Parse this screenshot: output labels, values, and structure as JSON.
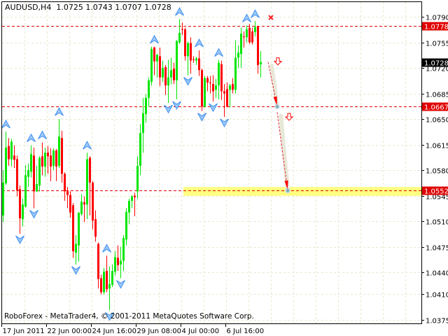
{
  "header": {
    "symbol": "AUDUSD,H4",
    "ohlc": "1.0725 1.0743 1.0707 1.0728"
  },
  "footer": {
    "copyright": "RoboForex - MetaTrader4, © 2001-2011 MetaQuotes Software Corp."
  },
  "colors": {
    "bull": "#00e600",
    "bear": "#ff0000",
    "level": "#e00000",
    "zone": "#ffff80",
    "fractal": "#3f8fef",
    "grid": "#e8e8d0",
    "current_label": "#000000"
  },
  "chart_data": {
    "type": "candlestick",
    "title": "AUDUSD,H4",
    "ylim": [
      1.0375,
      1.079
    ],
    "yticks": [
      "1.0790",
      "1.0755",
      "1.0720",
      "1.0685",
      "1.0650",
      "1.0615",
      "1.0580",
      "1.0545",
      "1.0510",
      "1.0475",
      "1.0440",
      "1.0410",
      "1.0375"
    ],
    "xticks": [
      {
        "label": "17 Jun 2011",
        "candle": 0
      },
      {
        "label": "22 Jun 00:00",
        "candle": 16
      },
      {
        "label": "24 Jun 16:00",
        "candle": 32
      },
      {
        "label": "29 Jun 08:00",
        "candle": 48
      },
      {
        "label": "4 Jul 00:00",
        "candle": 64
      },
      {
        "label": "6 Jul 16:00",
        "candle": 80
      }
    ],
    "grid": true,
    "candles_ohlc": [
      [
        1.0518,
        1.058,
        1.0509,
        1.0563
      ],
      [
        1.0562,
        1.0633,
        1.056,
        1.0611
      ],
      [
        1.0613,
        1.0624,
        1.0586,
        1.0595
      ],
      [
        1.0595,
        1.0623,
        1.0585,
        1.0619
      ],
      [
        1.06,
        1.0614,
        1.0583,
        1.0594
      ],
      [
        1.0595,
        1.06,
        1.0544,
        1.0552
      ],
      [
        1.0554,
        1.0559,
        1.0493,
        1.0514
      ],
      [
        1.0513,
        1.0541,
        1.0503,
        1.0533
      ],
      [
        1.053,
        1.0587,
        1.0529,
        1.0573
      ],
      [
        1.0571,
        1.0589,
        1.0557,
        1.058
      ],
      [
        1.0578,
        1.0614,
        1.057,
        1.0602
      ],
      [
        1.06,
        1.0611,
        1.0528,
        1.0551
      ],
      [
        1.0551,
        1.0586,
        1.055,
        1.0561
      ],
      [
        1.0559,
        1.0599,
        1.0551,
        1.0597
      ],
      [
        1.0599,
        1.0618,
        1.0573,
        1.0585
      ],
      [
        1.0585,
        1.0611,
        1.0571,
        1.0604
      ],
      [
        1.0604,
        1.0613,
        1.0575,
        1.0599
      ],
      [
        1.06,
        1.061,
        1.0565,
        1.0585
      ],
      [
        1.0586,
        1.061,
        1.058,
        1.0607
      ],
      [
        1.0607,
        1.0609,
        1.0565,
        1.0585
      ],
      [
        1.0586,
        1.065,
        1.0583,
        1.0626
      ],
      [
        1.0624,
        1.0634,
        1.0563,
        1.0575
      ],
      [
        1.0575,
        1.0577,
        1.0538,
        1.0551
      ],
      [
        1.0551,
        1.0557,
        1.0528,
        1.0546
      ],
      [
        1.0546,
        1.0551,
        1.0515,
        1.0522
      ],
      [
        1.0532,
        1.0535,
        1.046,
        1.0469
      ],
      [
        1.0467,
        1.0491,
        1.0451,
        1.0479
      ],
      [
        1.0477,
        1.0522,
        1.0455,
        1.0522
      ],
      [
        1.052,
        1.0547,
        1.0518,
        1.0537
      ],
      [
        1.0536,
        1.0544,
        1.0509,
        1.0533
      ],
      [
        1.0533,
        1.0604,
        1.0513,
        1.0595
      ],
      [
        1.0597,
        1.0599,
        1.0518,
        1.0563
      ],
      [
        1.0563,
        1.0565,
        1.0499,
        1.0511
      ],
      [
        1.0513,
        1.0525,
        1.0482,
        1.0489
      ],
      [
        1.0479,
        1.0481,
        1.0418,
        1.0431
      ],
      [
        1.0432,
        1.0437,
        1.041,
        1.0413
      ],
      [
        1.0413,
        1.0446,
        1.041,
        1.0441
      ],
      [
        1.0442,
        1.0463,
        1.0413,
        1.0417
      ],
      [
        1.0418,
        1.0448,
        1.0388,
        1.0424
      ],
      [
        1.0423,
        1.0451,
        1.042,
        1.0442
      ],
      [
        1.0441,
        1.0469,
        1.0436,
        1.0461
      ],
      [
        1.046,
        1.0477,
        1.0442,
        1.045
      ],
      [
        1.0451,
        1.0475,
        1.0432,
        1.0456
      ],
      [
        1.0456,
        1.0491,
        1.0442,
        1.0487
      ],
      [
        1.0485,
        1.0528,
        1.0477,
        1.0523
      ],
      [
        1.0522,
        1.0541,
        1.0506,
        1.0538
      ],
      [
        1.0538,
        1.0546,
        1.0528,
        1.0544
      ],
      [
        1.0545,
        1.0549,
        1.0517,
        1.0543
      ],
      [
        1.0551,
        1.0599,
        1.0541,
        1.0586
      ],
      [
        1.0586,
        1.0643,
        1.0573,
        1.0631
      ],
      [
        1.0631,
        1.0679,
        1.0604,
        1.0658
      ],
      [
        1.0657,
        1.0684,
        1.0645,
        1.0679
      ],
      [
        1.0679,
        1.0707,
        1.0667,
        1.0703
      ],
      [
        1.0701,
        1.0749,
        1.0696,
        1.0746
      ],
      [
        1.0748,
        1.0749,
        1.071,
        1.0729
      ],
      [
        1.0729,
        1.0739,
        1.0707,
        1.0738
      ],
      [
        1.0736,
        1.0748,
        1.0695,
        1.0707
      ],
      [
        1.0707,
        1.073,
        1.0701,
        1.072
      ],
      [
        1.0721,
        1.0724,
        1.0683,
        1.0696
      ],
      [
        1.0696,
        1.0731,
        1.0672,
        1.0707
      ],
      [
        1.0707,
        1.0734,
        1.0698,
        1.0717
      ],
      [
        1.0719,
        1.0727,
        1.0698,
        1.0703
      ],
      [
        1.0703,
        1.0758,
        1.0677,
        1.0757
      ],
      [
        1.0755,
        1.0787,
        1.0753,
        1.0768
      ],
      [
        1.0773,
        1.0782,
        1.0765,
        1.0772
      ],
      [
        1.0773,
        1.0775,
        1.073,
        1.0736
      ],
      [
        1.0736,
        1.0756,
        1.071,
        1.0754
      ],
      [
        1.0754,
        1.0762,
        1.0712,
        1.073
      ],
      [
        1.0732,
        1.0736,
        1.0727,
        1.0731
      ],
      [
        1.073,
        1.0735,
        1.0724,
        1.0733
      ],
      [
        1.0733,
        1.0744,
        1.0709,
        1.0717
      ],
      [
        1.0717,
        1.0719,
        1.0661,
        1.0667
      ],
      [
        1.0667,
        1.0709,
        1.0666,
        1.0706
      ],
      [
        1.0706,
        1.0709,
        1.0688,
        1.07
      ],
      [
        1.07,
        1.0709,
        1.0685,
        1.0699
      ],
      [
        1.0698,
        1.071,
        1.0674,
        1.0688
      ],
      [
        1.069,
        1.0705,
        1.0679,
        1.0696
      ],
      [
        1.0696,
        1.0731,
        1.0677,
        1.0727
      ],
      [
        1.0725,
        1.073,
        1.0676,
        1.0688
      ],
      [
        1.0688,
        1.0698,
        1.0653,
        1.0685
      ],
      [
        1.0691,
        1.07,
        1.0666,
        1.0667
      ],
      [
        1.069,
        1.0698,
        1.0666,
        1.0696
      ],
      [
        1.0698,
        1.0706,
        1.0685,
        1.069
      ],
      [
        1.069,
        1.0758,
        1.0685,
        1.0734
      ],
      [
        1.0734,
        1.0751,
        1.072,
        1.0741
      ],
      [
        1.0739,
        1.0775,
        1.072,
        1.0767
      ],
      [
        1.0763,
        1.077,
        1.0748,
        1.0762
      ],
      [
        1.0762,
        1.0778,
        1.0755,
        1.0773
      ],
      [
        1.0775,
        1.078,
        1.0753,
        1.0755
      ],
      [
        1.077,
        1.0775,
        1.0752,
        1.0755
      ],
      [
        1.0769,
        1.0784,
        1.0763,
        1.0776
      ],
      [
        1.0777,
        1.0777,
        1.0712,
        1.0724
      ],
      [
        1.0725,
        1.0743,
        1.0707,
        1.0728
      ]
    ],
    "fractals": [
      {
        "candle": 1,
        "type": "up"
      },
      {
        "candle": 10,
        "type": "up"
      },
      {
        "candle": 14,
        "type": "up"
      },
      {
        "candle": 20,
        "type": "up"
      },
      {
        "candle": 30,
        "type": "up"
      },
      {
        "candle": 37,
        "type": "up"
      },
      {
        "candle": 54,
        "type": "up"
      },
      {
        "candle": 63,
        "type": "up"
      },
      {
        "candle": 70,
        "type": "up"
      },
      {
        "candle": 77,
        "type": "up"
      },
      {
        "candle": 87,
        "type": "up"
      },
      {
        "candle": 90,
        "type": "up"
      },
      {
        "candle": 6,
        "type": "down"
      },
      {
        "candle": 11,
        "type": "down"
      },
      {
        "candle": 26,
        "type": "down"
      },
      {
        "candle": 38,
        "type": "down"
      },
      {
        "candle": 42,
        "type": "down"
      },
      {
        "candle": 59,
        "type": "down"
      },
      {
        "candle": 62,
        "type": "down"
      },
      {
        "candle": 66,
        "type": "down"
      },
      {
        "candle": 71,
        "type": "down"
      },
      {
        "candle": 75,
        "type": "down"
      },
      {
        "candle": 79,
        "type": "down"
      }
    ],
    "levels": [
      {
        "price": 1.0778,
        "label": "1.0778"
      },
      {
        "price": 1.0667,
        "label": "1.0667"
      },
      {
        "price": 1.0552,
        "label": "1.0552"
      }
    ],
    "current_price": {
      "price": 1.0728,
      "label": "1.0728"
    },
    "target_zone": {
      "from_candle": 65,
      "price_high": 1.0557,
      "price_low": 1.0545
    },
    "forecast_path": [
      {
        "candle": 94.75,
        "price": 1.0728
      },
      {
        "candle": 98,
        "price": 1.0667
      },
      {
        "candle": 101.75,
        "price": 1.0552
      }
    ],
    "sell_signals": [
      {
        "candle": 98.25,
        "price": 1.0729
      },
      {
        "candle": 102.25,
        "price": 1.0653
      }
    ],
    "stop_mark": {
      "candle": 95.75,
      "price": 1.0789
    }
  }
}
